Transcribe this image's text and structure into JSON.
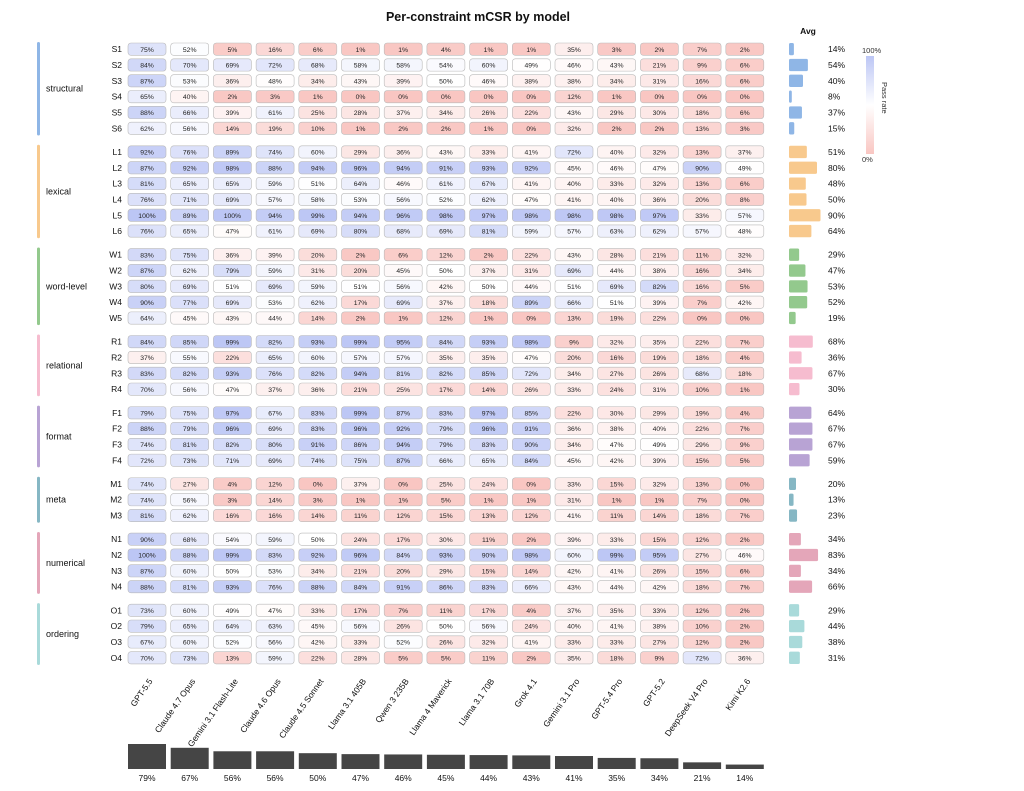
{
  "chart_data": {
    "type": "heatmap",
    "title": "Per-constraint mCSR by model",
    "models": [
      "GPT-5.5",
      "Claude 4.7 Opus",
      "Gemini 3.1 Flash-Lite",
      "Claude 4.6 Opus",
      "Claude 4.5 Sonnet",
      "Llama 3.1 405B",
      "Qwen 3 235B",
      "Llama 4 Maverick",
      "Llama 3.1 70B",
      "Grok 4.1",
      "Gemini 3.1 Pro",
      "GPT-5.4 Pro",
      "GPT-5.2",
      "DeepSeek V4 Pro",
      "Kimi K2.6"
    ],
    "groups": [
      {
        "name": "structural",
        "color": "#8fb6e6",
        "rows": [
          {
            "label": "S1",
            "values": [
              75,
              52,
              5,
              16,
              6,
              1,
              1,
              4,
              1,
              1,
              35,
              3,
              2,
              7,
              2
            ],
            "avg": 14
          },
          {
            "label": "S2",
            "values": [
              84,
              70,
              69,
              72,
              68,
              58,
              58,
              54,
              60,
              49,
              46,
              43,
              21,
              9,
              6
            ],
            "avg": 54
          },
          {
            "label": "S3",
            "values": [
              87,
              53,
              36,
              48,
              34,
              43,
              39,
              50,
              46,
              38,
              38,
              34,
              31,
              16,
              6
            ],
            "avg": 40
          },
          {
            "label": "S4",
            "values": [
              65,
              40,
              2,
              3,
              1,
              0,
              0,
              0,
              0,
              0,
              12,
              1,
              0,
              0,
              0
            ],
            "avg": 8
          },
          {
            "label": "S5",
            "values": [
              88,
              66,
              39,
              61,
              25,
              28,
              37,
              34,
              26,
              22,
              43,
              29,
              30,
              18,
              6
            ],
            "avg": 37
          },
          {
            "label": "S6",
            "values": [
              62,
              56,
              14,
              19,
              10,
              1,
              2,
              2,
              1,
              0,
              32,
              2,
              2,
              13,
              3
            ],
            "avg": 15
          }
        ]
      },
      {
        "name": "lexical",
        "color": "#f8c98d",
        "rows": [
          {
            "label": "L1",
            "values": [
              92,
              76,
              89,
              74,
              60,
              29,
              36,
              43,
              33,
              41,
              72,
              40,
              32,
              13,
              37
            ],
            "avg": 51
          },
          {
            "label": "L2",
            "values": [
              87,
              92,
              98,
              88,
              94,
              96,
              94,
              91,
              93,
              92,
              45,
              46,
              47,
              90,
              49
            ],
            "avg": 80
          },
          {
            "label": "L3",
            "values": [
              81,
              65,
              65,
              59,
              51,
              64,
              46,
              61,
              67,
              41,
              40,
              33,
              32,
              13,
              6
            ],
            "avg": 48
          },
          {
            "label": "L4",
            "values": [
              76,
              71,
              69,
              57,
              58,
              53,
              56,
              52,
              62,
              47,
              41,
              40,
              36,
              20,
              8
            ],
            "avg": 50
          },
          {
            "label": "L5",
            "values": [
              100,
              89,
              100,
              94,
              99,
              94,
              96,
              98,
              97,
              98,
              98,
              98,
              97,
              33,
              57
            ],
            "avg": 90
          },
          {
            "label": "L6",
            "values": [
              76,
              65,
              47,
              61,
              69,
              80,
              68,
              69,
              81,
              59,
              57,
              63,
              62,
              57,
              48
            ],
            "avg": 64
          }
        ]
      },
      {
        "name": "word-level",
        "color": "#93c98d",
        "rows": [
          {
            "label": "W1",
            "values": [
              83,
              75,
              36,
              39,
              20,
              2,
              6,
              12,
              2,
              22,
              43,
              28,
              21,
              11,
              32
            ],
            "avg": 29
          },
          {
            "label": "W2",
            "values": [
              87,
              62,
              79,
              59,
              31,
              20,
              45,
              50,
              37,
              31,
              69,
              44,
              38,
              16,
              34
            ],
            "avg": 47
          },
          {
            "label": "W3",
            "values": [
              80,
              69,
              51,
              69,
              59,
              51,
              56,
              42,
              50,
              44,
              51,
              69,
              82,
              16,
              5
            ],
            "avg": 53
          },
          {
            "label": "W4",
            "values": [
              90,
              77,
              69,
              53,
              62,
              17,
              69,
              37,
              18,
              89,
              66,
              51,
              39,
              7,
              42
            ],
            "avg": 52
          },
          {
            "label": "W5",
            "values": [
              64,
              45,
              43,
              44,
              14,
              2,
              1,
              12,
              1,
              0,
              13,
              19,
              22,
              0,
              0
            ],
            "avg": 19
          }
        ]
      },
      {
        "name": "relational",
        "color": "#f6bccf",
        "rows": [
          {
            "label": "R1",
            "values": [
              84,
              85,
              99,
              82,
              93,
              99,
              95,
              84,
              93,
              98,
              9,
              32,
              35,
              22,
              7
            ],
            "avg": 68
          },
          {
            "label": "R2",
            "values": [
              37,
              55,
              22,
              65,
              60,
              57,
              57,
              35,
              35,
              47,
              20,
              16,
              19,
              18,
              4
            ],
            "avg": 36
          },
          {
            "label": "R3",
            "values": [
              83,
              82,
              93,
              76,
              82,
              94,
              81,
              82,
              85,
              72,
              34,
              27,
              26,
              68,
              18
            ],
            "avg": 67
          },
          {
            "label": "R4",
            "values": [
              70,
              56,
              47,
              37,
              36,
              21,
              25,
              17,
              14,
              26,
              33,
              24,
              31,
              10,
              1
            ],
            "avg": 30
          }
        ]
      },
      {
        "name": "format",
        "color": "#b8a3d4",
        "rows": [
          {
            "label": "F1",
            "values": [
              79,
              75,
              97,
              67,
              83,
              99,
              87,
              83,
              97,
              85,
              22,
              30,
              29,
              19,
              4
            ],
            "avg": 64
          },
          {
            "label": "F2",
            "values": [
              88,
              79,
              96,
              69,
              83,
              96,
              92,
              79,
              96,
              91,
              36,
              38,
              40,
              22,
              7
            ],
            "avg": 67
          },
          {
            "label": "F3",
            "values": [
              74,
              81,
              82,
              80,
              91,
              86,
              94,
              79,
              83,
              90,
              34,
              47,
              49,
              29,
              9
            ],
            "avg": 67
          },
          {
            "label": "F4",
            "values": [
              72,
              73,
              71,
              69,
              74,
              75,
              87,
              66,
              65,
              84,
              45,
              42,
              39,
              15,
              5
            ],
            "avg": 59
          }
        ]
      },
      {
        "name": "meta",
        "color": "#86b7c4",
        "rows": [
          {
            "label": "M1",
            "values": [
              74,
              27,
              4,
              12,
              0,
              37,
              0,
              25,
              24,
              0,
              33,
              15,
              32,
              13,
              0
            ],
            "avg": 20
          },
          {
            "label": "M2",
            "values": [
              74,
              56,
              3,
              14,
              3,
              1,
              1,
              5,
              1,
              1,
              31,
              1,
              1,
              7,
              0
            ],
            "avg": 13
          },
          {
            "label": "M3",
            "values": [
              81,
              62,
              16,
              16,
              14,
              11,
              12,
              15,
              13,
              12,
              41,
              11,
              14,
              18,
              7
            ],
            "avg": 23
          }
        ]
      },
      {
        "name": "numerical",
        "color": "#e4a6b9",
        "rows": [
          {
            "label": "N1",
            "values": [
              90,
              68,
              54,
              59,
              50,
              24,
              17,
              30,
              11,
              2,
              39,
              33,
              15,
              12,
              2
            ],
            "avg": 34
          },
          {
            "label": "N2",
            "values": [
              100,
              88,
              99,
              83,
              92,
              96,
              84,
              93,
              90,
              98,
              60,
              99,
              95,
              27,
              46
            ],
            "avg": 83
          },
          {
            "label": "N3",
            "values": [
              87,
              60,
              50,
              53,
              34,
              21,
              20,
              29,
              15,
              14,
              42,
              41,
              26,
              15,
              6
            ],
            "avg": 34
          },
          {
            "label": "N4",
            "values": [
              88,
              81,
              93,
              76,
              88,
              84,
              91,
              86,
              83,
              66,
              43,
              44,
              42,
              18,
              7
            ],
            "avg": 66
          }
        ]
      },
      {
        "name": "ordering",
        "color": "#a9dada",
        "rows": [
          {
            "label": "O1",
            "values": [
              73,
              60,
              49,
              47,
              33,
              17,
              7,
              11,
              17,
              4,
              37,
              35,
              33,
              12,
              2
            ],
            "avg": 29
          },
          {
            "label": "O2",
            "values": [
              79,
              65,
              64,
              63,
              45,
              56,
              26,
              50,
              56,
              24,
              40,
              41,
              38,
              10,
              2
            ],
            "avg": 44
          },
          {
            "label": "O3",
            "values": [
              67,
              60,
              52,
              56,
              42,
              33,
              52,
              26,
              32,
              41,
              33,
              33,
              27,
              12,
              2
            ],
            "avg": 38
          },
          {
            "label": "O4",
            "values": [
              70,
              73,
              13,
              59,
              22,
              28,
              5,
              5,
              11,
              2,
              35,
              18,
              9,
              72,
              36
            ],
            "avg": 31
          }
        ]
      }
    ],
    "avg_header": "Avg",
    "model_totals": [
      79,
      67,
      56,
      56,
      50,
      47,
      46,
      45,
      44,
      43,
      41,
      35,
      34,
      21,
      14
    ],
    "colorbar": {
      "label": "Pass rate",
      "max_label": "100%",
      "min_label": "0%",
      "low_color": "#f9c6c2",
      "mid_color": "#ffffff",
      "high_color": "#bcc6f5"
    },
    "cell_border_color": "#b9b9b9",
    "bar_color": "#454545",
    "value_format_suffix": "%"
  }
}
